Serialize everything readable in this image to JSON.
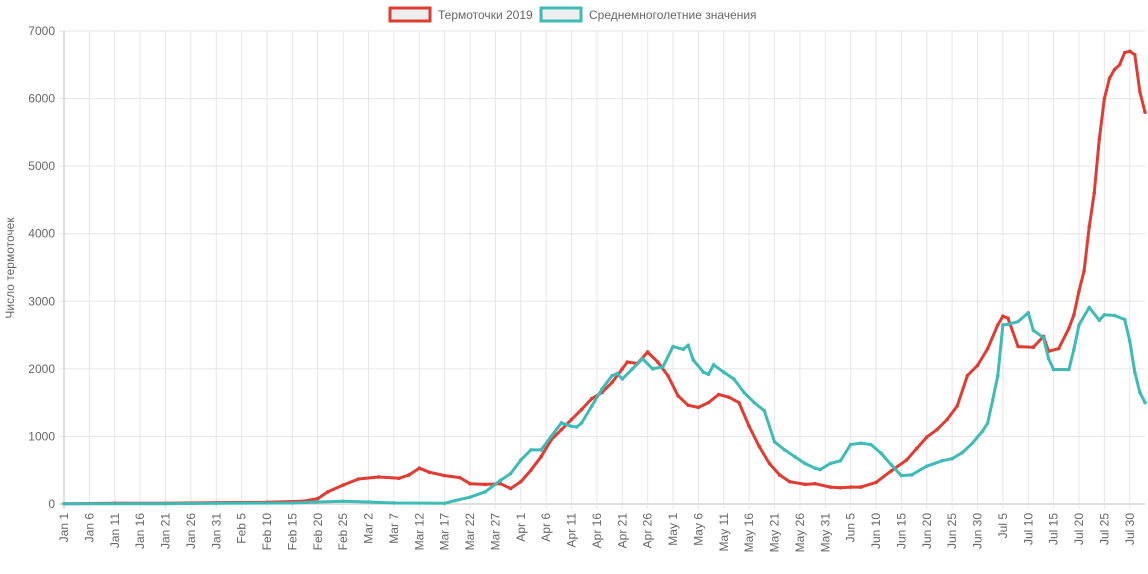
{
  "chart_data": {
    "type": "line",
    "ylabel": "Число термоточек",
    "ylim": [
      0,
      7000
    ],
    "yticks": [
      0,
      1000,
      2000,
      3000,
      4000,
      5000,
      6000,
      7000
    ],
    "x_tick_labels": [
      "Jan 1",
      "Jan 6",
      "Jan 11",
      "Jan 16",
      "Jan 21",
      "Jan 26",
      "Jan 31",
      "Feb 5",
      "Feb 10",
      "Feb 15",
      "Feb 20",
      "Feb 25",
      "Mar 2",
      "Mar 7",
      "Mar 12",
      "Mar 17",
      "Mar 22",
      "Mar 27",
      "Apr 1",
      "Apr 6",
      "Apr 11",
      "Apr 16",
      "Apr 21",
      "Apr 26",
      "May 1",
      "May 6",
      "May 11",
      "May 16",
      "May 21",
      "May 26",
      "May 31",
      "Jun 5",
      "Jun 10",
      "Jun 15",
      "Jun 20",
      "Jun 25",
      "Jun 30",
      "Jul 5",
      "Jul 10",
      "Jul 15",
      "Jul 20",
      "Jul 25",
      "Jul 30"
    ],
    "x_tick_day_index": [
      0,
      5,
      10,
      15,
      20,
      25,
      30,
      35,
      40,
      45,
      50,
      55,
      60,
      65,
      70,
      75,
      80,
      85,
      90,
      95,
      100,
      105,
      110,
      115,
      120,
      125,
      130,
      135,
      140,
      145,
      150,
      155,
      160,
      165,
      170,
      175,
      180,
      185,
      190,
      195,
      200,
      205,
      210
    ],
    "grid": true,
    "legend_position": "top",
    "series": [
      {
        "name": "Термоточки 2019",
        "color": "#e03c31",
        "points": [
          [
            0,
            5
          ],
          [
            10,
            10
          ],
          [
            20,
            10
          ],
          [
            30,
            20
          ],
          [
            40,
            25
          ],
          [
            47,
            40
          ],
          [
            50,
            80
          ],
          [
            52,
            180
          ],
          [
            55,
            280
          ],
          [
            58,
            370
          ],
          [
            62,
            400
          ],
          [
            66,
            380
          ],
          [
            68,
            430
          ],
          [
            70,
            530
          ],
          [
            72,
            470
          ],
          [
            75,
            420
          ],
          [
            78,
            390
          ],
          [
            80,
            300
          ],
          [
            83,
            290
          ],
          [
            86,
            300
          ],
          [
            88,
            230
          ],
          [
            90,
            330
          ],
          [
            92,
            500
          ],
          [
            94,
            700
          ],
          [
            96,
            950
          ],
          [
            98,
            1100
          ],
          [
            100,
            1250
          ],
          [
            102,
            1400
          ],
          [
            104,
            1560
          ],
          [
            106,
            1650
          ],
          [
            108,
            1800
          ],
          [
            110,
            2000
          ],
          [
            111,
            2100
          ],
          [
            113,
            2080
          ],
          [
            115,
            2250
          ],
          [
            117,
            2100
          ],
          [
            119,
            1900
          ],
          [
            121,
            1600
          ],
          [
            123,
            1460
          ],
          [
            125,
            1430
          ],
          [
            127,
            1500
          ],
          [
            129,
            1620
          ],
          [
            131,
            1580
          ],
          [
            133,
            1500
          ],
          [
            135,
            1150
          ],
          [
            137,
            850
          ],
          [
            139,
            600
          ],
          [
            141,
            430
          ],
          [
            143,
            330
          ],
          [
            146,
            290
          ],
          [
            148,
            300
          ],
          [
            151,
            250
          ],
          [
            153,
            240
          ],
          [
            155,
            250
          ],
          [
            157,
            250
          ],
          [
            160,
            320
          ],
          [
            163,
            490
          ],
          [
            166,
            650
          ],
          [
            168,
            820
          ],
          [
            170,
            990
          ],
          [
            172,
            1100
          ],
          [
            174,
            1250
          ],
          [
            176,
            1450
          ],
          [
            178,
            1900
          ],
          [
            180,
            2050
          ],
          [
            182,
            2300
          ],
          [
            184,
            2650
          ],
          [
            185,
            2780
          ],
          [
            186,
            2750
          ],
          [
            188,
            2330
          ],
          [
            191,
            2320
          ],
          [
            193,
            2480
          ],
          [
            194,
            2260
          ],
          [
            196,
            2300
          ],
          [
            198,
            2600
          ],
          [
            199,
            2800
          ],
          [
            200,
            3150
          ],
          [
            201,
            3450
          ],
          [
            202,
            4100
          ],
          [
            203,
            4600
          ],
          [
            204,
            5400
          ],
          [
            205,
            6000
          ],
          [
            206,
            6300
          ],
          [
            207,
            6430
          ],
          [
            208,
            6500
          ],
          [
            209,
            6680
          ],
          [
            210,
            6700
          ],
          [
            211,
            6650
          ],
          [
            212,
            6100
          ],
          [
            213,
            5800
          ]
        ]
      },
      {
        "name": "Среднемноголетние значения",
        "color": "#3fbbb7",
        "points": [
          [
            0,
            5
          ],
          [
            20,
            5
          ],
          [
            30,
            10
          ],
          [
            45,
            15
          ],
          [
            50,
            30
          ],
          [
            55,
            40
          ],
          [
            60,
            30
          ],
          [
            65,
            15
          ],
          [
            75,
            10
          ],
          [
            77,
            50
          ],
          [
            80,
            100
          ],
          [
            83,
            180
          ],
          [
            86,
            350
          ],
          [
            88,
            450
          ],
          [
            90,
            650
          ],
          [
            92,
            800
          ],
          [
            94,
            800
          ],
          [
            96,
            1000
          ],
          [
            98,
            1200
          ],
          [
            100,
            1150
          ],
          [
            101,
            1140
          ],
          [
            102,
            1200
          ],
          [
            104,
            1450
          ],
          [
            106,
            1700
          ],
          [
            108,
            1900
          ],
          [
            109,
            1930
          ],
          [
            110,
            1850
          ],
          [
            112,
            2000
          ],
          [
            114,
            2150
          ],
          [
            116,
            2000
          ],
          [
            118,
            2030
          ],
          [
            120,
            2330
          ],
          [
            122,
            2290
          ],
          [
            123,
            2350
          ],
          [
            124,
            2130
          ],
          [
            126,
            1950
          ],
          [
            127,
            1920
          ],
          [
            128,
            2060
          ],
          [
            130,
            1950
          ],
          [
            132,
            1850
          ],
          [
            134,
            1650
          ],
          [
            136,
            1500
          ],
          [
            138,
            1380
          ],
          [
            140,
            920
          ],
          [
            142,
            800
          ],
          [
            144,
            700
          ],
          [
            146,
            600
          ],
          [
            148,
            530
          ],
          [
            149,
            510
          ],
          [
            151,
            600
          ],
          [
            153,
            640
          ],
          [
            155,
            880
          ],
          [
            157,
            900
          ],
          [
            159,
            880
          ],
          [
            161,
            750
          ],
          [
            163,
            580
          ],
          [
            165,
            420
          ],
          [
            167,
            430
          ],
          [
            170,
            560
          ],
          [
            173,
            640
          ],
          [
            175,
            670
          ],
          [
            177,
            760
          ],
          [
            179,
            900
          ],
          [
            181,
            1080
          ],
          [
            182,
            1200
          ],
          [
            183,
            1540
          ],
          [
            184,
            1900
          ],
          [
            185,
            2650
          ],
          [
            186,
            2660
          ],
          [
            188,
            2700
          ],
          [
            190,
            2830
          ],
          [
            191,
            2570
          ],
          [
            193,
            2460
          ],
          [
            194,
            2150
          ],
          [
            195,
            1990
          ],
          [
            198,
            1990
          ],
          [
            199,
            2290
          ],
          [
            200,
            2650
          ],
          [
            202,
            2910
          ],
          [
            204,
            2720
          ],
          [
            205,
            2800
          ],
          [
            207,
            2790
          ],
          [
            209,
            2730
          ],
          [
            210,
            2410
          ],
          [
            211,
            1950
          ],
          [
            212,
            1650
          ],
          [
            213,
            1500
          ]
        ]
      }
    ]
  }
}
